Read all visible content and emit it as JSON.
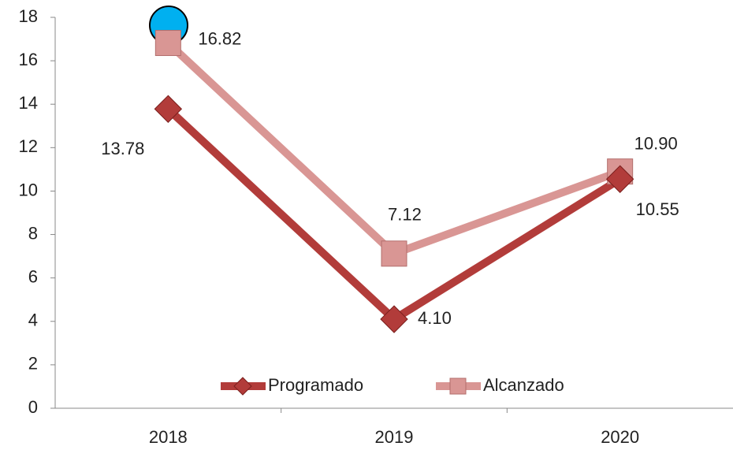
{
  "chart_data": {
    "type": "line",
    "categories": [
      "2018",
      "2019",
      "2020"
    ],
    "series": [
      {
        "name": "Programado",
        "color": "#b23c3a",
        "marker": "diamond",
        "values": [
          13.78,
          4.1,
          10.55
        ],
        "value_labels": [
          "13.78",
          "4.10",
          "10.55"
        ]
      },
      {
        "name": "Alcanzado",
        "color": "#d99694",
        "marker": "square",
        "values": [
          16.82,
          7.12,
          10.9
        ],
        "value_labels": [
          "16.82",
          "7.12",
          "10.90"
        ]
      }
    ],
    "ylim": [
      0,
      18
    ],
    "yticks": [
      0,
      2,
      4,
      6,
      8,
      10,
      12,
      14,
      16,
      18
    ],
    "legend": "bottom"
  }
}
